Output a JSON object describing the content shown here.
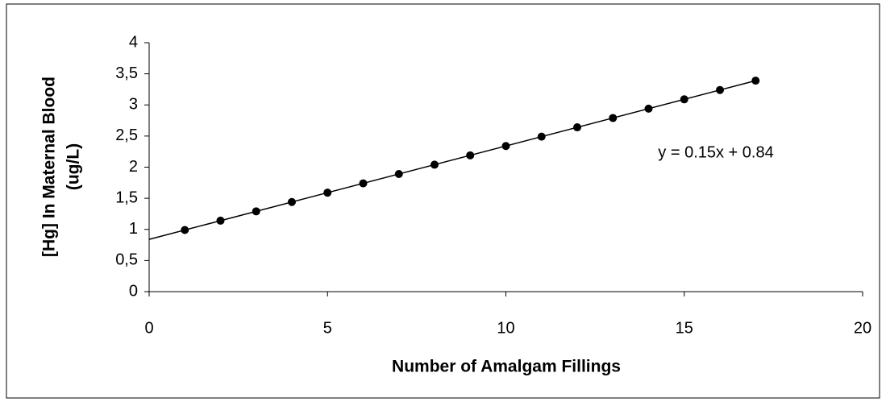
{
  "chart_data": {
    "type": "scatter",
    "xlabel": "Number of Amalgam Fillings",
    "ylabel": [
      "[Hg] In Maternal Blood",
      "(ug/L)"
    ],
    "annotation": "y = 0.15x + 0.84",
    "series": [
      {
        "color": "#000000",
        "x": [
          1,
          2,
          3,
          4,
          5,
          6,
          7,
          8,
          9,
          10,
          11,
          12,
          13,
          14,
          15,
          16,
          17
        ],
        "values": [
          0.99,
          1.14,
          1.29,
          1.44,
          1.59,
          1.74,
          1.89,
          2.04,
          2.19,
          2.34,
          2.49,
          2.64,
          2.79,
          2.94,
          3.09,
          3.24,
          3.39
        ]
      }
    ],
    "trendline": {
      "slope": 0.15,
      "intercept": 0.84,
      "color": "#000000"
    },
    "xlim": [
      0,
      20
    ],
    "xticks": [
      0,
      5,
      10,
      15,
      20
    ],
    "ylim": [
      0,
      4
    ],
    "yticks": [
      0,
      {
        "value": 0.5,
        "label": "0,5"
      },
      1,
      {
        "value": 1.5,
        "label": "1,5"
      },
      2,
      {
        "value": 2.5,
        "label": "2,5"
      },
      3,
      {
        "value": 3.5,
        "label": "3,5"
      },
      4
    ],
    "grid": false
  }
}
